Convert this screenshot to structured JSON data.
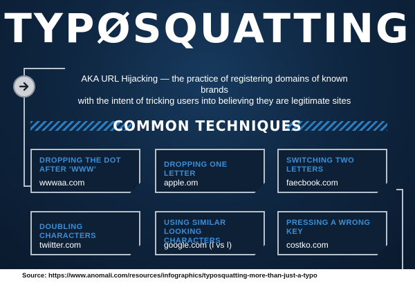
{
  "header": {
    "title": "TYPØSQUATTING",
    "subtitle_line1": "AKA URL Hijacking — the practice of registering domains of known brands",
    "subtitle_line2": "with the intent of tricking users into believing they are legitimate sites"
  },
  "section": {
    "title": "COMMON TECHNIQUES"
  },
  "techniques": [
    {
      "label": "DROPPING THE DOT AFTER ‘WWW’",
      "example": "wwwaa.com"
    },
    {
      "label": "DROPPING ONE LETTER",
      "example": "apple.om"
    },
    {
      "label": "SWITCHING TWO LETTERS",
      "example": "faecbook.com"
    },
    {
      "label": "DOUBLING CHARACTERS",
      "example": "twiitter.com"
    },
    {
      "label": "USING SIMILAR LOOKING CHARACTERS",
      "example": "google.com (l vs I)"
    },
    {
      "label": "PRESSING A WRONG KEY",
      "example": "costko.com"
    }
  ],
  "caption": {
    "text": "Source: https://www.anomali.com/resources/infographics/typosquatting-more-than-just-a-typo"
  },
  "colors": {
    "background": "#0f2742",
    "accent": "#3a8fd8",
    "card_border": "#b9c2cb",
    "text": "#ffffff"
  },
  "icons": {
    "badge": "arrow-right-icon"
  }
}
